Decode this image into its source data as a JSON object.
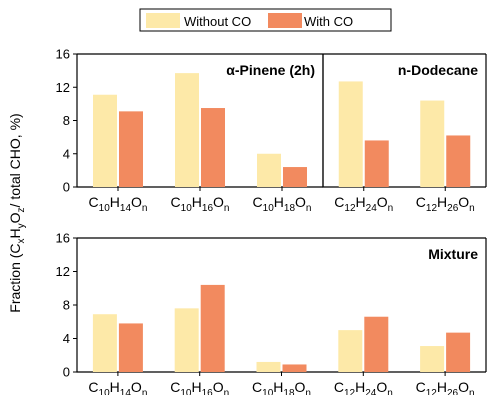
{
  "colors": {
    "without_co": "#FDE9A8",
    "with_co": "#F28A5F",
    "axis": "#000000"
  },
  "legend": [
    {
      "label": "Without CO",
      "color_key": "without_co"
    },
    {
      "label": "With CO",
      "color_key": "with_co"
    }
  ],
  "ylabel": {
    "parts": [
      {
        "t": "Fraction (C"
      },
      {
        "t": "x",
        "sub": true
      },
      {
        "t": "H"
      },
      {
        "t": "y",
        "sub": true
      },
      {
        "t": "O"
      },
      {
        "t": "z",
        "sub": true
      },
      {
        "t": "/ total CHO, %)"
      }
    ]
  },
  "chart_data": [
    {
      "type": "bar",
      "title": "α-Pinene (2h)",
      "categories": [
        "C10H14On",
        "C10H16On",
        "C10H18On"
      ],
      "category_parts": [
        [
          {
            "t": "C"
          },
          {
            "t": "10",
            "sub": true
          },
          {
            "t": "H"
          },
          {
            "t": "14",
            "sub": true
          },
          {
            "t": "O"
          },
          {
            "t": "n",
            "sub": true
          }
        ],
        [
          {
            "t": "C"
          },
          {
            "t": "10",
            "sub": true
          },
          {
            "t": "H"
          },
          {
            "t": "16",
            "sub": true
          },
          {
            "t": "O"
          },
          {
            "t": "n",
            "sub": true
          }
        ],
        [
          {
            "t": "C"
          },
          {
            "t": "10",
            "sub": true
          },
          {
            "t": "H"
          },
          {
            "t": "18",
            "sub": true
          },
          {
            "t": "O"
          },
          {
            "t": "n",
            "sub": true
          }
        ]
      ],
      "series": [
        {
          "name": "Without CO",
          "values": [
            11.1,
            13.7,
            4.0
          ]
        },
        {
          "name": "With CO",
          "values": [
            9.1,
            9.5,
            2.4
          ]
        }
      ],
      "ylim": [
        0,
        16
      ],
      "yticks": [
        0,
        4,
        8,
        12,
        16
      ],
      "grid": false
    },
    {
      "type": "bar",
      "title": "n-Dodecane",
      "categories": [
        "C12H24On",
        "C12H26On"
      ],
      "category_parts": [
        [
          {
            "t": "C"
          },
          {
            "t": "12",
            "sub": true
          },
          {
            "t": "H"
          },
          {
            "t": "24",
            "sub": true
          },
          {
            "t": "O"
          },
          {
            "t": "n",
            "sub": true
          }
        ],
        [
          {
            "t": "C"
          },
          {
            "t": "12",
            "sub": true
          },
          {
            "t": "H"
          },
          {
            "t": "26",
            "sub": true
          },
          {
            "t": "O"
          },
          {
            "t": "n",
            "sub": true
          }
        ]
      ],
      "series": [
        {
          "name": "Without CO",
          "values": [
            12.7,
            10.4
          ]
        },
        {
          "name": "With CO",
          "values": [
            5.6,
            6.2
          ]
        }
      ],
      "ylim": [
        0,
        16
      ],
      "grid": false
    },
    {
      "type": "bar",
      "title": "Mixture",
      "categories": [
        "C10H14On",
        "C10H16On",
        "C10H18On",
        "C12H24On",
        "C12H26On"
      ],
      "category_parts": [
        [
          {
            "t": "C"
          },
          {
            "t": "10",
            "sub": true
          },
          {
            "t": "H"
          },
          {
            "t": "14",
            "sub": true
          },
          {
            "t": "O"
          },
          {
            "t": "n",
            "sub": true
          }
        ],
        [
          {
            "t": "C"
          },
          {
            "t": "10",
            "sub": true
          },
          {
            "t": "H"
          },
          {
            "t": "16",
            "sub": true
          },
          {
            "t": "O"
          },
          {
            "t": "n",
            "sub": true
          }
        ],
        [
          {
            "t": "C"
          },
          {
            "t": "10",
            "sub": true
          },
          {
            "t": "H"
          },
          {
            "t": "18",
            "sub": true
          },
          {
            "t": "O"
          },
          {
            "t": "n",
            "sub": true
          }
        ],
        [
          {
            "t": "C"
          },
          {
            "t": "12",
            "sub": true
          },
          {
            "t": "H"
          },
          {
            "t": "24",
            "sub": true
          },
          {
            "t": "O"
          },
          {
            "t": "n",
            "sub": true
          }
        ],
        [
          {
            "t": "C"
          },
          {
            "t": "12",
            "sub": true
          },
          {
            "t": "H"
          },
          {
            "t": "26",
            "sub": true
          },
          {
            "t": "O"
          },
          {
            "t": "n",
            "sub": true
          }
        ]
      ],
      "series": [
        {
          "name": "Without CO",
          "values": [
            6.9,
            7.6,
            1.2,
            5.0,
            3.1
          ]
        },
        {
          "name": "With CO",
          "values": [
            5.8,
            10.4,
            0.9,
            6.6,
            4.7
          ]
        }
      ],
      "ylim": [
        0,
        16
      ],
      "yticks": [
        0,
        4,
        8,
        12,
        16
      ],
      "grid": false
    }
  ]
}
